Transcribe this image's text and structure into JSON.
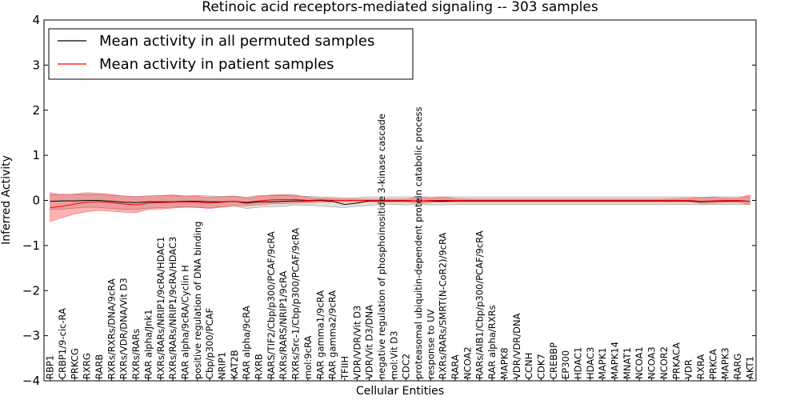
{
  "chart_data": {
    "type": "line",
    "title": "Retinoic acid receptors-mediated signaling -- 303 samples",
    "xlabel": "Cellular Entities",
    "ylabel": "Inferred Activity",
    "ylim": [
      -4,
      4
    ],
    "yticks": [
      -4,
      -3,
      -2,
      -1,
      0,
      1,
      2,
      3,
      4
    ],
    "ytick_labels": [
      "−4",
      "−3",
      "−2",
      "−1",
      "0",
      "1",
      "2",
      "3",
      "4"
    ],
    "legend": {
      "position": "top-left",
      "entries": [
        {
          "label": "Mean activity in all permuted samples",
          "color": "#000000"
        },
        {
          "label": "Mean activity in patient samples",
          "color": "#ff0000"
        }
      ]
    },
    "categories": [
      "RBP1",
      "CRBP1/9-cic-RA",
      "PRKCG",
      "RXRG",
      "RARB",
      "RXRs/RXRs/DNA/9cRA",
      "RXRs/VDR/DNA/Vit D3",
      "RXRs/RARs",
      "RAR alpha/Jnk1",
      "RXRs/RARs/NRIP1/9cRA/HDAC1",
      "RXRs/RARs/NRIP1/9cRA/HDAC3",
      "RAR alpha/9cRA/Cyclin H",
      "positive regulation of DNA binding",
      "Cbp/p300/PCAF",
      "NRIP1",
      "KAT2B",
      "RAR alpha/9cRA",
      "RXRB",
      "RARS/TIF2/Cbp/p300/PCAF/9cRA",
      "RXRs/RARS/NRIP1/9cRA",
      "RXRs/Src-1/Cbp/p300/PCAF/9cRA",
      "mol:9cRA",
      "RAR gamma1/9cRA",
      "RAR gamma2/9cRA",
      "TFIIH",
      "VDR/VDR/Vit D3",
      "VDR/Vit D3/DNA",
      "negative regulation of phosphoinositide 3-kinase cascade",
      "mol:Vit D3",
      "CDC2",
      "proteasomal ubiquitin-dependent protein catabolic process",
      "response to UV",
      "RXRs/RARs/SMRT(N-CoR2)/9cRA",
      "RARA",
      "NCOA2",
      "RARs/AIB1/Cbp/p300/PCAF/9cRA",
      "RAR alpha/RXRs",
      "MAPK8",
      "VDR/VDR/DNA",
      "CCNH",
      "CDK7",
      "CREBBP",
      "EP300",
      "HDAC1",
      "HDAC3",
      "MAPK1",
      "MAPK14",
      "MNAT1",
      "NCOA1",
      "NCOA3",
      "NCOR2",
      "PRKACA",
      "VDR",
      "RXRA",
      "PRKCA",
      "MAPK3",
      "RARG",
      "AKT1"
    ],
    "series": [
      {
        "name": "Mean activity in all permuted samples",
        "color": "#000000",
        "values": [
          -0.02,
          -0.01,
          -0.01,
          0,
          0,
          -0.02,
          -0.04,
          -0.05,
          -0.03,
          -0.03,
          -0.03,
          -0.02,
          -0.02,
          -0.03,
          -0.03,
          -0.02,
          -0.06,
          -0.03,
          -0.03,
          -0.02,
          -0.01,
          -0.01,
          0,
          -0.02,
          -0.09,
          -0.06,
          -0.01,
          -0.01,
          -0.01,
          -0.01,
          -0.01,
          -0.01,
          -0.02,
          -0.01,
          -0.01,
          -0.01,
          -0.01,
          -0.01,
          -0.01,
          -0.01,
          -0.01,
          -0.01,
          -0.01,
          -0.01,
          -0.01,
          -0.01,
          -0.01,
          -0.01,
          -0.01,
          -0.01,
          -0.01,
          -0.01,
          -0.01,
          -0.03,
          -0.02,
          -0.01,
          -0.01,
          -0.02
        ],
        "band_lower": [
          -0.2,
          -0.19,
          -0.17,
          -0.15,
          -0.16,
          -0.18,
          -0.2,
          -0.2,
          -0.17,
          -0.16,
          -0.15,
          -0.14,
          -0.15,
          -0.16,
          -0.14,
          -0.12,
          -0.18,
          -0.15,
          -0.14,
          -0.13,
          -0.1,
          -0.11,
          -0.12,
          -0.14,
          -0.16,
          -0.13,
          -0.11,
          -0.09,
          -0.09,
          -0.1,
          -0.09,
          -0.1,
          -0.1,
          -0.09,
          -0.09,
          -0.09,
          -0.09,
          -0.09,
          -0.09,
          -0.09,
          -0.09,
          -0.09,
          -0.09,
          -0.09,
          -0.09,
          -0.09,
          -0.09,
          -0.09,
          -0.09,
          -0.09,
          -0.09,
          -0.09,
          -0.09,
          -0.1,
          -0.09,
          -0.09,
          -0.09,
          -0.09
        ],
        "band_upper": [
          0.12,
          0.14,
          0.13,
          0.13,
          0.13,
          0.11,
          0.1,
          0.09,
          0.1,
          0.11,
          0.1,
          0.1,
          0.11,
          0.1,
          0.09,
          0.1,
          0.07,
          0.11,
          0.11,
          0.11,
          0.1,
          0.09,
          0.08,
          0.07,
          0.05,
          0.06,
          0.08,
          0.08,
          0.08,
          0.08,
          0.08,
          0.08,
          0.08,
          0.08,
          0.08,
          0.08,
          0.08,
          0.08,
          0.08,
          0.08,
          0.08,
          0.08,
          0.08,
          0.08,
          0.08,
          0.08,
          0.08,
          0.08,
          0.08,
          0.08,
          0.08,
          0.08,
          0.08,
          0.07,
          0.08,
          0.08,
          0.08,
          0.08
        ]
      },
      {
        "name": "Mean activity in patient samples",
        "color": "#ff0000",
        "values": [
          -0.16,
          -0.13,
          -0.08,
          -0.04,
          -0.03,
          -0.05,
          -0.08,
          -0.1,
          -0.06,
          -0.05,
          -0.04,
          -0.03,
          -0.04,
          -0.06,
          -0.04,
          -0.02,
          -0.04,
          -0.01,
          0.01,
          0.02,
          0.02,
          0,
          0.01,
          0,
          0,
          0,
          0,
          0,
          0,
          0,
          -0.01,
          0,
          0,
          0,
          0,
          0,
          0,
          0,
          0,
          0,
          0,
          0,
          0,
          0,
          0,
          0,
          0,
          0,
          0,
          0,
          0,
          0,
          0,
          -0.02,
          -0.01,
          0,
          0,
          -0.02
        ],
        "band_lower": [
          -0.47,
          -0.38,
          -0.3,
          -0.25,
          -0.22,
          -0.24,
          -0.26,
          -0.27,
          -0.2,
          -0.19,
          -0.17,
          -0.15,
          -0.16,
          -0.18,
          -0.15,
          -0.12,
          -0.12,
          -0.1,
          -0.08,
          -0.07,
          -0.06,
          -0.05,
          -0.04,
          -0.03,
          -0.03,
          -0.03,
          -0.03,
          -0.03,
          -0.03,
          -0.03,
          -0.07,
          -0.04,
          -0.03,
          -0.03,
          -0.03,
          -0.03,
          -0.03,
          -0.03,
          -0.03,
          -0.03,
          -0.03,
          -0.03,
          -0.03,
          -0.03,
          -0.03,
          -0.03,
          -0.03,
          -0.03,
          -0.03,
          -0.03,
          -0.03,
          -0.03,
          -0.03,
          -0.07,
          -0.06,
          -0.04,
          -0.04,
          -0.09
        ],
        "band_upper": [
          0.17,
          0.12,
          0.14,
          0.17,
          0.16,
          0.13,
          0.1,
          0.08,
          0.1,
          0.11,
          0.12,
          0.1,
          0.09,
          0.07,
          0.08,
          0.09,
          0.05,
          0.09,
          0.12,
          0.13,
          0.12,
          0.07,
          0.05,
          0.04,
          0.03,
          0.03,
          0.03,
          0.03,
          0.03,
          0.03,
          0.08,
          0.05,
          0.08,
          0.04,
          0.03,
          0.03,
          0.03,
          0.03,
          0.03,
          0.03,
          0.03,
          0.03,
          0.03,
          0.03,
          0.03,
          0.03,
          0.03,
          0.03,
          0.03,
          0.03,
          0.03,
          0.04,
          0.05,
          0.06,
          0.07,
          0.05,
          0.05,
          0.12
        ]
      }
    ]
  }
}
